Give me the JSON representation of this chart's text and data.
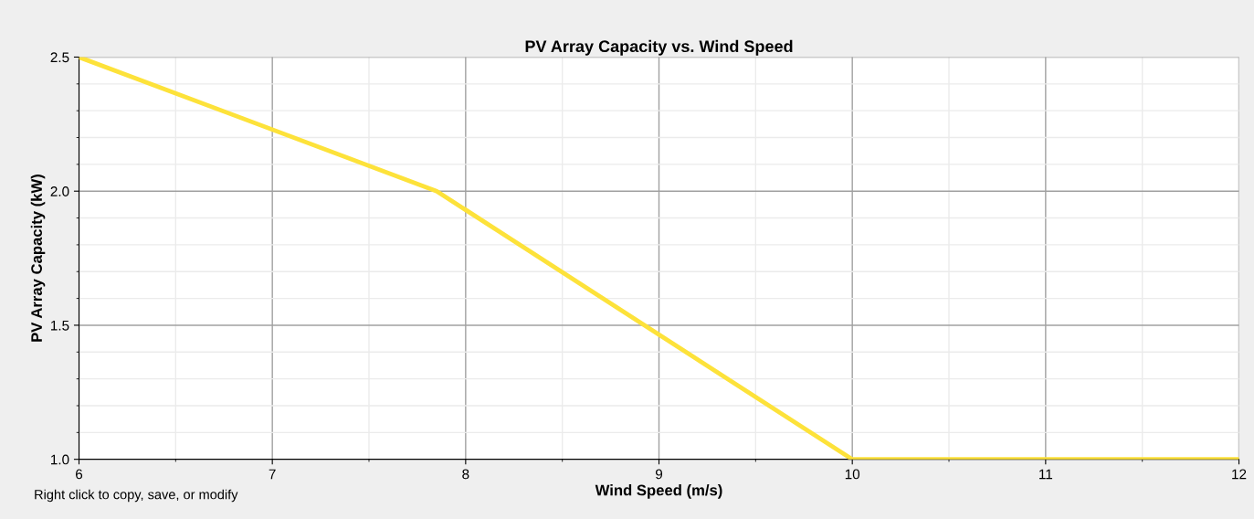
{
  "chart_data": {
    "type": "line",
    "title": "PV Array Capacity vs. Wind Speed",
    "xlabel": "Wind Speed (m/s)",
    "ylabel": "PV Array Capacity (kW)",
    "x": [
      6,
      7.85,
      10,
      12
    ],
    "series": [
      {
        "color": "#fde23a",
        "values": [
          2.5,
          2.0,
          1.0,
          1.0
        ]
      }
    ],
    "xlim": [
      6,
      12
    ],
    "xticks": [
      6,
      7,
      8,
      9,
      10,
      11,
      12
    ],
    "ylim": [
      1.0,
      2.5
    ],
    "yticks": [
      {
        "value": 1.0,
        "label": "1.0"
      },
      {
        "value": 1.5,
        "label": "1.5"
      },
      {
        "value": 2.0,
        "label": "2.0"
      },
      {
        "value": 2.5,
        "label": "2.5"
      }
    ],
    "grid": true,
    "marker": "none",
    "line_style": "solid",
    "annotations": [
      "Right click to copy, save, or modify"
    ]
  }
}
